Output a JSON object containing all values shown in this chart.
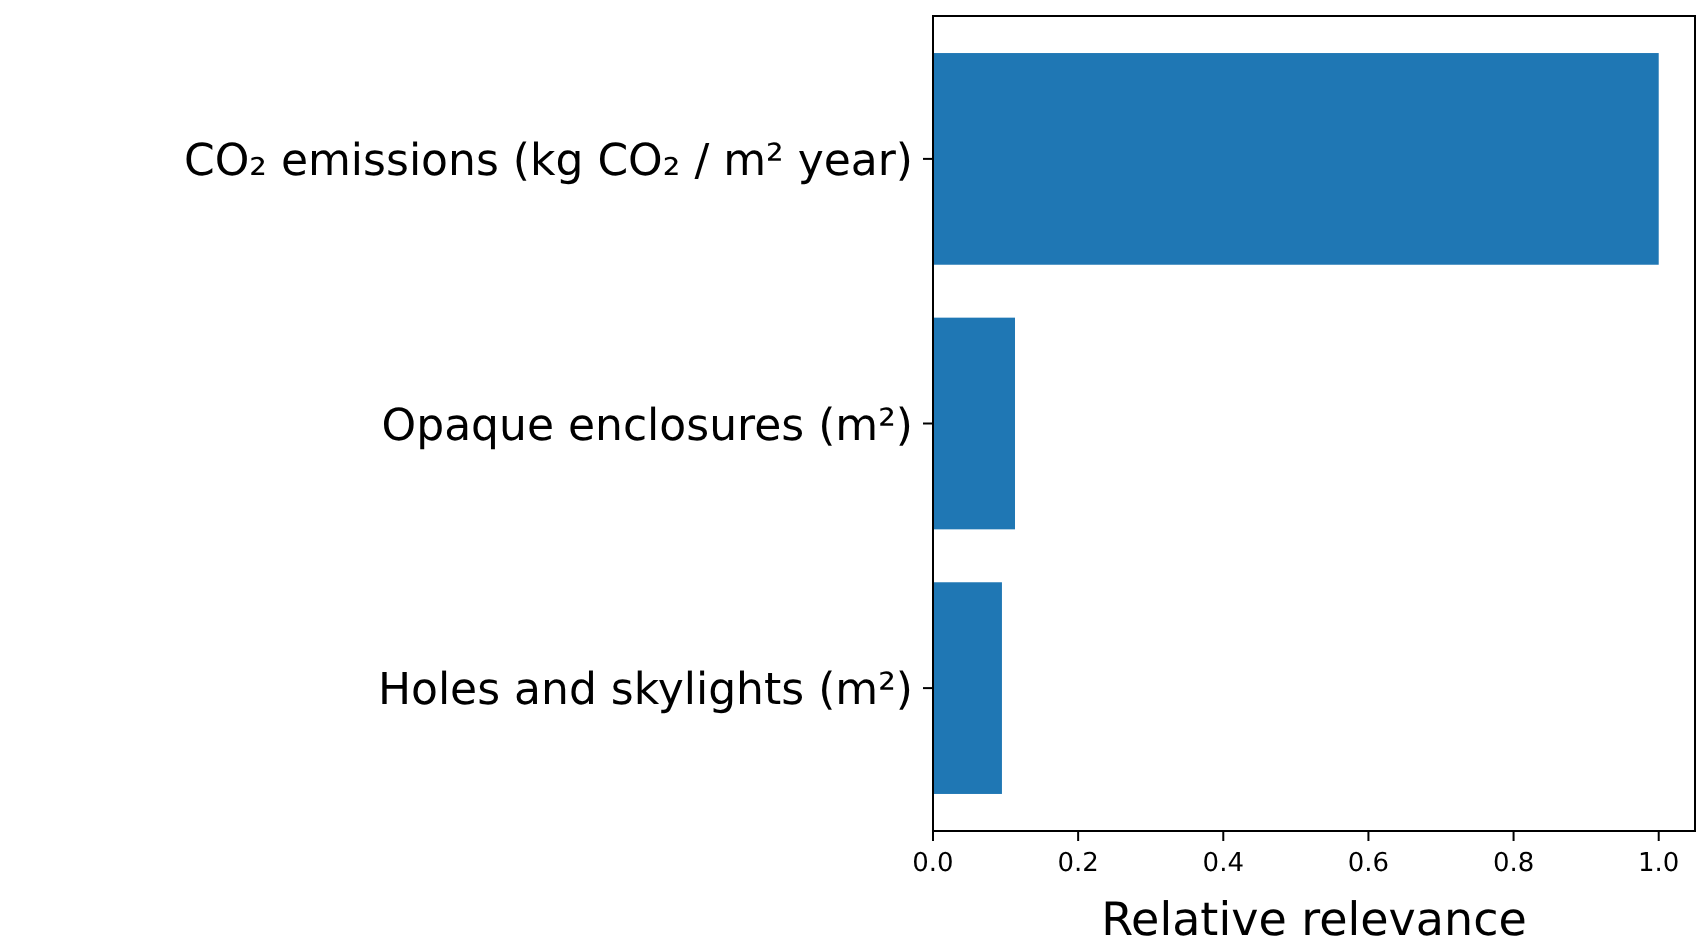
{
  "chart_data": {
    "type": "bar",
    "orientation": "horizontal",
    "categories": [
      "CO₂ emissions (kg CO₂ / m² year)",
      "Opaque enclosures (m²)",
      "Holes and skylights (m²)"
    ],
    "values": [
      1.0,
      0.113,
      0.095
    ],
    "color": "#1f77b4",
    "xlabel": "Relative relevance",
    "xlim": [
      0,
      1.05
    ],
    "xticks": [
      {
        "value": 0,
        "label": "0.0"
      },
      {
        "value": 0.2,
        "label": "0.2"
      },
      {
        "value": 0.4,
        "label": "0.4"
      },
      {
        "value": 0.6,
        "label": "0.6"
      },
      {
        "value": 0.8,
        "label": "0.8"
      },
      {
        "value": 1.0,
        "label": "1.0"
      }
    ],
    "grid": false
  }
}
